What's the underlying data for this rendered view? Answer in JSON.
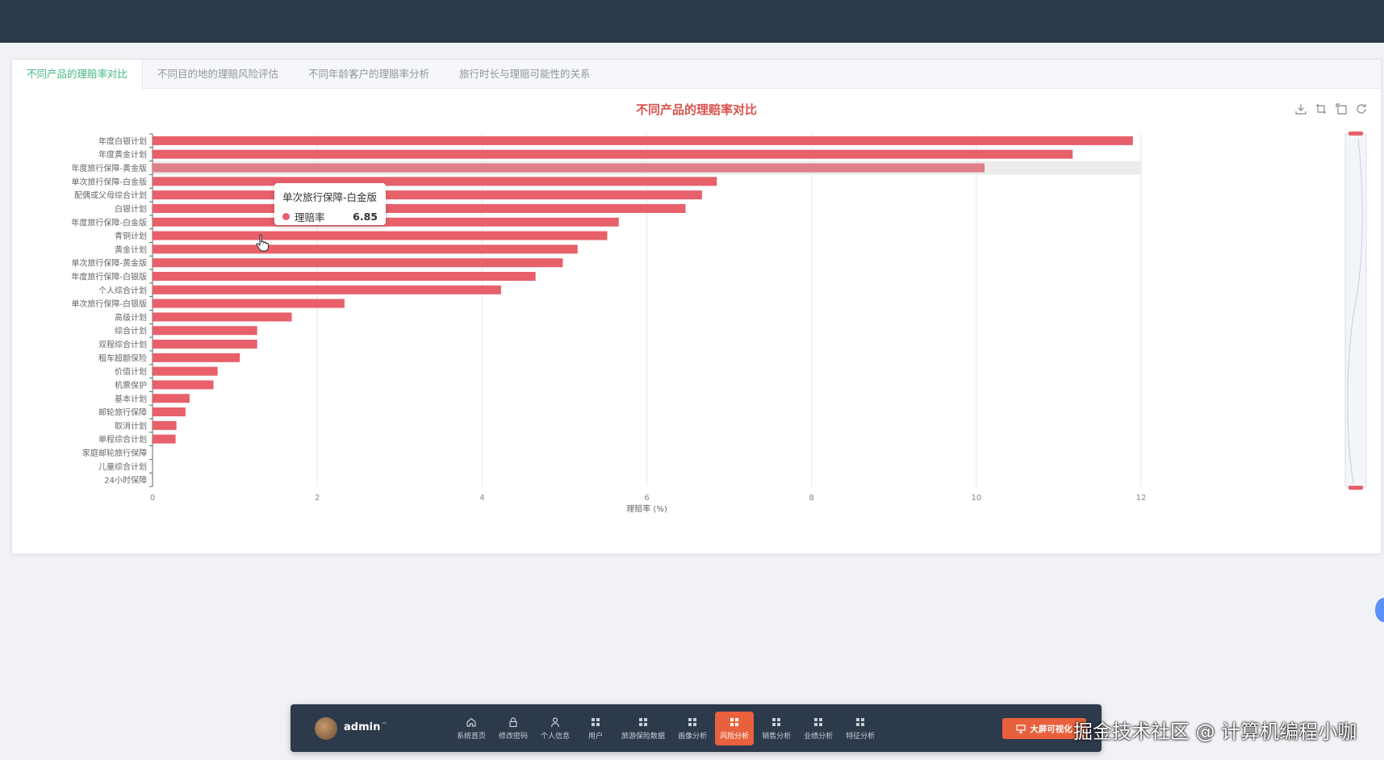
{
  "tabs": [
    "不同产品的理赔率对比",
    "不同目的地的理赔风险评估",
    "不同年龄客户的理赔率分析",
    "旅行时长与理赔可能性的关系"
  ],
  "tooltip": {
    "title": "单次旅行保障-白金版",
    "series": "理赔率",
    "value": "6.85"
  },
  "dock": {
    "user": "admin",
    "nav": [
      "系统首页",
      "修改密码",
      "个人信息",
      "用户",
      "旅游保险数据",
      "画像分析",
      "风险分析",
      "销售分析",
      "业绩分析",
      "特征分析"
    ],
    "active_index": 6,
    "bigscreen": "大屏可视化"
  },
  "watermark": "掘金技术社区 @ 计算机编程小咖",
  "colors": {
    "bar": "#e8606a",
    "accent": "#42b983",
    "title": "#d9534f",
    "dock": "#2d3a4b",
    "active": "#e8613c"
  },
  "chart_data": {
    "type": "bar",
    "orientation": "horizontal",
    "title": "不同产品的理赔率对比",
    "xlabel": "理赔率 (%)",
    "xlim": [
      0,
      12
    ],
    "xticks": [
      0,
      2,
      4,
      6,
      8,
      10,
      12
    ],
    "grid": true,
    "highlighted": "年度旅行保障-黄金版",
    "categories": [
      "年度白银计划",
      "年度黄金计划",
      "年度旅行保障-黄金版",
      "单次旅行保障-白金版",
      "配偶或父母综合计划",
      "白银计划",
      "年度旅行保障-白金版",
      "青铜计划",
      "黄金计划",
      "单次旅行保障-黄金版",
      "年度旅行保障-白银版",
      "个人综合计划",
      "单次旅行保障-白银版",
      "高级计划",
      "综合计划",
      "双程综合计划",
      "租车超额保险",
      "价值计划",
      "机票保护",
      "基本计划",
      "邮轮旅行保障",
      "取消计划",
      "单程综合计划",
      "家庭邮轮旅行保障",
      "儿童综合计划",
      "24小时保障"
    ],
    "values": [
      11.9,
      11.17,
      10.1,
      6.85,
      6.67,
      6.47,
      5.66,
      5.52,
      5.16,
      4.98,
      4.65,
      4.23,
      2.33,
      1.69,
      1.27,
      1.27,
      1.06,
      0.79,
      0.74,
      0.45,
      0.4,
      0.29,
      0.28,
      0.0,
      0.0,
      0.0
    ]
  }
}
